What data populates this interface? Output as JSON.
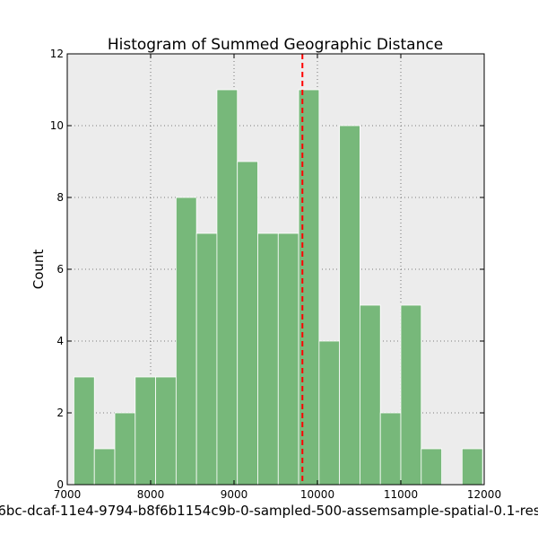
{
  "chart_data": {
    "type": "bar",
    "title": "Histogram of Summed Geographic Distance",
    "xlabel": "6bc-dcaf-11e4-9794-b8f6b1154c9b-0-sampled-500-assemsample-spatial-0.1-res",
    "ylabel": "Count",
    "xlim": [
      7000,
      12000
    ],
    "ylim": [
      0,
      12
    ],
    "x_ticks": [
      7000,
      8000,
      9000,
      10000,
      11000,
      12000
    ],
    "x_tick_labels": [
      "7000",
      "8000",
      "9000",
      "10000",
      "11000",
      "12000"
    ],
    "y_ticks": [
      0,
      2,
      4,
      6,
      8,
      10,
      12
    ],
    "y_tick_labels": [
      "0",
      "2",
      "4",
      "6",
      "8",
      "10",
      "12"
    ],
    "grid": true,
    "bins": [
      {
        "x0": 7080,
        "x1": 7325,
        "count": 3
      },
      {
        "x0": 7325,
        "x1": 7570,
        "count": 1
      },
      {
        "x0": 7570,
        "x1": 7815,
        "count": 2
      },
      {
        "x0": 7815,
        "x1": 8060,
        "count": 3
      },
      {
        "x0": 8060,
        "x1": 8305,
        "count": 3
      },
      {
        "x0": 8305,
        "x1": 8550,
        "count": 8
      },
      {
        "x0": 8550,
        "x1": 8795,
        "count": 7
      },
      {
        "x0": 8795,
        "x1": 9040,
        "count": 11
      },
      {
        "x0": 9040,
        "x1": 9285,
        "count": 9
      },
      {
        "x0": 9285,
        "x1": 9530,
        "count": 7
      },
      {
        "x0": 9530,
        "x1": 9775,
        "count": 7
      },
      {
        "x0": 9775,
        "x1": 10020,
        "count": 11
      },
      {
        "x0": 10020,
        "x1": 10265,
        "count": 4
      },
      {
        "x0": 10265,
        "x1": 10510,
        "count": 10
      },
      {
        "x0": 10510,
        "x1": 10755,
        "count": 5
      },
      {
        "x0": 10755,
        "x1": 11000,
        "count": 2
      },
      {
        "x0": 11000,
        "x1": 11245,
        "count": 5
      },
      {
        "x0": 11245,
        "x1": 11490,
        "count": 1
      },
      {
        "x0": 11490,
        "x1": 11735,
        "count": 0
      },
      {
        "x0": 11735,
        "x1": 11980,
        "count": 1
      }
    ],
    "reference_line": {
      "x": 9820,
      "color": "#ff0000",
      "style": "dashed"
    },
    "colors": {
      "bar_fill": "#77b87a",
      "bar_edge": "#ffffff",
      "plot_background": "#ececec",
      "grid": "#555555"
    }
  }
}
